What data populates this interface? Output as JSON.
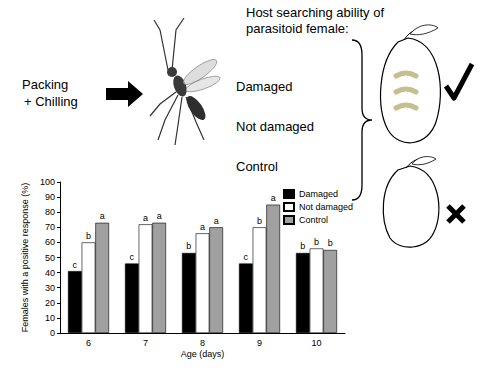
{
  "chart_data": {
    "type": "bar",
    "categories": [
      "6",
      "7",
      "8",
      "9",
      "10"
    ],
    "x_label": "Age (days)",
    "y_label": "Females with a positive response (%)",
    "ylim": [
      0,
      100
    ],
    "yticks": [
      0,
      10,
      20,
      30,
      40,
      50,
      60,
      70,
      80,
      90,
      100
    ],
    "grid": false,
    "legend": "upper right",
    "series": [
      {
        "name": "Damaged",
        "color": "#000000",
        "values": [
          41,
          46,
          53,
          46,
          53
        ],
        "letters": [
          "c",
          "c",
          "b",
          "c",
          "b"
        ]
      },
      {
        "name": "Not damaged",
        "color": "#ffffff",
        "values": [
          60,
          72,
          66,
          70,
          56
        ],
        "letters": [
          "b",
          "a",
          "a",
          "b",
          "b"
        ]
      },
      {
        "name": "Control",
        "color": "#a0a0a0",
        "values": [
          73,
          73,
          70,
          85,
          55
        ],
        "letters": [
          "a",
          "a",
          "a",
          "a",
          "b"
        ]
      }
    ]
  },
  "diagram": {
    "title": [
      "Host searching ability of",
      "parasitoid female:"
    ],
    "treatment": [
      "Packing",
      "+ Chilling"
    ],
    "groups": [
      "Damaged",
      "Not damaged",
      "Control"
    ]
  }
}
